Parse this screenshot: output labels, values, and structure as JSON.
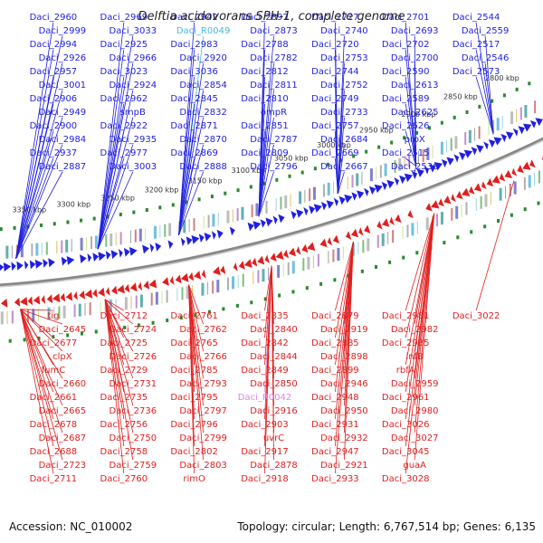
{
  "title": "Delftia acidovorans SPH-1, complete genome",
  "accession": "Accession: NC_010002",
  "summary": "Topology: circular; Length: 6,767,514 bp; Genes: 6,135",
  "colors": {
    "forward_strand": "#1f1fe0",
    "reverse_strand": "#e01f1f",
    "rna_gene": "#44bbdd",
    "pseudogene": "#dd88dd",
    "backbone": "#888888",
    "tick": "#2a8a2a"
  },
  "kbp_ticks": [
    "2800 kbp",
    "2850 kbp",
    "2900 kbp",
    "2950 kbp",
    "3000 kbp",
    "3050 kbp",
    "3100 kbp",
    "3150 kbp",
    "3200 kbp",
    "3250 kbp",
    "3300 kbp",
    "3350 kbp"
  ],
  "upper_labels": [
    {
      "text": "Daci_2960",
      "c": "b"
    },
    {
      "text": "Daci_2999",
      "c": "b"
    },
    {
      "text": "Daci_2994",
      "c": "b"
    },
    {
      "text": "Daci_2926",
      "c": "b"
    },
    {
      "text": "Daci_2957",
      "c": "b"
    },
    {
      "text": "Daci_3001",
      "c": "b"
    },
    {
      "text": "Daci_2906",
      "c": "b"
    },
    {
      "text": "Daci_2949",
      "c": "b"
    },
    {
      "text": "Daci_2900",
      "c": "b"
    },
    {
      "text": "Daci_2984",
      "c": "b"
    },
    {
      "text": "Daci_2937",
      "c": "b"
    },
    {
      "text": "Daci_2887",
      "c": "b"
    },
    {
      "text": "Daci_2969",
      "c": "b"
    },
    {
      "text": "Daci_3033",
      "c": "b"
    },
    {
      "text": "Daci_2925",
      "c": "b"
    },
    {
      "text": "Daci_2966",
      "c": "b"
    },
    {
      "text": "Daci_3023",
      "c": "b"
    },
    {
      "text": "Daci_2924",
      "c": "b"
    },
    {
      "text": "Daci_2962",
      "c": "b"
    },
    {
      "text": "smpB",
      "c": "b"
    },
    {
      "text": "Daci_2922",
      "c": "b"
    },
    {
      "text": "Daci_2935",
      "c": "b"
    },
    {
      "text": "Daci_2977",
      "c": "b"
    },
    {
      "text": "Daci_3003",
      "c": "b"
    },
    {
      "text": "Daci_2942",
      "c": "b"
    },
    {
      "text": "Daci_R0049",
      "c": "c"
    },
    {
      "text": "Daci_2983",
      "c": "b"
    },
    {
      "text": "Daci_2920",
      "c": "b"
    },
    {
      "text": "Daci_3036",
      "c": "b"
    },
    {
      "text": "Daci_2854",
      "c": "b"
    },
    {
      "text": "Daci_2845",
      "c": "b"
    },
    {
      "text": "Daci_2832",
      "c": "b"
    },
    {
      "text": "Daci_2871",
      "c": "b"
    },
    {
      "text": "Daci_2870",
      "c": "b"
    },
    {
      "text": "Daci_2869",
      "c": "b"
    },
    {
      "text": "Daci_2888",
      "c": "b"
    },
    {
      "text": "Daci_2897",
      "c": "b"
    },
    {
      "text": "Daci_2873",
      "c": "b"
    },
    {
      "text": "Daci_2788",
      "c": "b"
    },
    {
      "text": "Daci_2782",
      "c": "b"
    },
    {
      "text": "Daci_2812",
      "c": "b"
    },
    {
      "text": "Daci_2811",
      "c": "b"
    },
    {
      "text": "Daci_2810",
      "c": "b"
    },
    {
      "text": "ompR",
      "c": "b"
    },
    {
      "text": "Daci_2851",
      "c": "b"
    },
    {
      "text": "Daci_2787",
      "c": "b"
    },
    {
      "text": "Daci_2809",
      "c": "b"
    },
    {
      "text": "Daci_2796",
      "c": "b"
    },
    {
      "text": "Daci_2727",
      "c": "b"
    },
    {
      "text": "Daci_2740",
      "c": "b"
    },
    {
      "text": "Daci_2720",
      "c": "b"
    },
    {
      "text": "Daci_2753",
      "c": "b"
    },
    {
      "text": "Daci_2744",
      "c": "b"
    },
    {
      "text": "Daci_2752",
      "c": "b"
    },
    {
      "text": "Daci_2749",
      "c": "b"
    },
    {
      "text": "Daci_2733",
      "c": "b"
    },
    {
      "text": "Daci_2757",
      "c": "b"
    },
    {
      "text": "Daci_2684",
      "c": "b"
    },
    {
      "text": "Daci_2669",
      "c": "b"
    },
    {
      "text": "Daci_2667",
      "c": "b"
    },
    {
      "text": "Daci_2701",
      "c": "b"
    },
    {
      "text": "Daci_2693",
      "c": "b"
    },
    {
      "text": "Daci_2702",
      "c": "b"
    },
    {
      "text": "Daci_2700",
      "c": "b"
    },
    {
      "text": "Daci_2590",
      "c": "b"
    },
    {
      "text": "Daci_2613",
      "c": "b"
    },
    {
      "text": "Daci_2589",
      "c": "b"
    },
    {
      "text": "Daci_2625",
      "c": "b"
    },
    {
      "text": "Daci_2626",
      "c": "b"
    },
    {
      "text": "proX",
      "c": "b"
    },
    {
      "text": "Daci_2515",
      "c": "b"
    },
    {
      "text": "Daci_2536",
      "c": "b"
    },
    {
      "text": "Daci_2544",
      "c": "b"
    },
    {
      "text": "Daci_2559",
      "c": "b"
    },
    {
      "text": "Daci_2517",
      "c": "b"
    },
    {
      "text": "Daci_2546",
      "c": "b"
    },
    {
      "text": "Daci_2573",
      "c": "b"
    }
  ],
  "lower_labels": [
    {
      "text": "tig",
      "c": "r"
    },
    {
      "text": "Daci_2645",
      "c": "r"
    },
    {
      "text": "Daci_2677",
      "c": "r"
    },
    {
      "text": "clpX",
      "c": "r"
    },
    {
      "text": "fumC",
      "c": "r"
    },
    {
      "text": "Daci_2660",
      "c": "r"
    },
    {
      "text": "Daci_2661",
      "c": "r"
    },
    {
      "text": "Daci_2665",
      "c": "r"
    },
    {
      "text": "Daci_2678",
      "c": "r"
    },
    {
      "text": "Daci_2687",
      "c": "r"
    },
    {
      "text": "Daci_2688",
      "c": "r"
    },
    {
      "text": "Daci_2723",
      "c": "r"
    },
    {
      "text": "Daci_2711",
      "c": "r"
    },
    {
      "text": "Daci_2712",
      "c": "r"
    },
    {
      "text": "Daci_2724",
      "c": "r"
    },
    {
      "text": "Daci_2725",
      "c": "r"
    },
    {
      "text": "Daci_2726",
      "c": "r"
    },
    {
      "text": "Daci_2729",
      "c": "r"
    },
    {
      "text": "Daci_2731",
      "c": "r"
    },
    {
      "text": "Daci_2735",
      "c": "r"
    },
    {
      "text": "Daci_2736",
      "c": "r"
    },
    {
      "text": "Daci_2756",
      "c": "r"
    },
    {
      "text": "Daci_2750",
      "c": "r"
    },
    {
      "text": "Daci_2758",
      "c": "r"
    },
    {
      "text": "Daci_2759",
      "c": "r"
    },
    {
      "text": "Daci_2760",
      "c": "r"
    },
    {
      "text": "Daci_2761",
      "c": "r"
    },
    {
      "text": "Daci_2762",
      "c": "r"
    },
    {
      "text": "Daci_2765",
      "c": "r"
    },
    {
      "text": "Daci_2766",
      "c": "r"
    },
    {
      "text": "Daci_2785",
      "c": "r"
    },
    {
      "text": "Daci_2793",
      "c": "r"
    },
    {
      "text": "Daci_2795",
      "c": "r"
    },
    {
      "text": "Daci_2797",
      "c": "r"
    },
    {
      "text": "Daci_2796",
      "c": "r"
    },
    {
      "text": "Daci_2799",
      "c": "r"
    },
    {
      "text": "Daci_2802",
      "c": "r"
    },
    {
      "text": "Daci_2803",
      "c": "r"
    },
    {
      "text": "rimO",
      "c": "r"
    },
    {
      "text": "Daci_2835",
      "c": "r"
    },
    {
      "text": "Daci_2840",
      "c": "r"
    },
    {
      "text": "Daci_2842",
      "c": "r"
    },
    {
      "text": "Daci_2844",
      "c": "r"
    },
    {
      "text": "Daci_2849",
      "c": "r"
    },
    {
      "text": "Daci_2850",
      "c": "r"
    },
    {
      "text": "Daci_R0042",
      "c": "p"
    },
    {
      "text": "Daci_2916",
      "c": "r"
    },
    {
      "text": "Daci_2903",
      "c": "r"
    },
    {
      "text": "uvrC",
      "c": "r"
    },
    {
      "text": "Daci_2917",
      "c": "r"
    },
    {
      "text": "Daci_2878",
      "c": "r"
    },
    {
      "text": "Daci_2918",
      "c": "r"
    },
    {
      "text": "Daci_2879",
      "c": "r"
    },
    {
      "text": "Daci_2919",
      "c": "r"
    },
    {
      "text": "Daci_2885",
      "c": "r"
    },
    {
      "text": "Daci_2898",
      "c": "r"
    },
    {
      "text": "Daci_2899",
      "c": "r"
    },
    {
      "text": "Daci_2946",
      "c": "r"
    },
    {
      "text": "Daci_2948",
      "c": "r"
    },
    {
      "text": "Daci_2950",
      "c": "r"
    },
    {
      "text": "Daci_2931",
      "c": "r"
    },
    {
      "text": "Daci_2932",
      "c": "r"
    },
    {
      "text": "Daci_2947",
      "c": "r"
    },
    {
      "text": "Daci_2921",
      "c": "r"
    },
    {
      "text": "Daci_2933",
      "c": "r"
    },
    {
      "text": "Daci_2981",
      "c": "r"
    },
    {
      "text": "Daci_2982",
      "c": "r"
    },
    {
      "text": "Daci_2985",
      "c": "r"
    },
    {
      "text": "infB",
      "c": "r"
    },
    {
      "text": "rbfA",
      "c": "r"
    },
    {
      "text": "Daci_2959",
      "c": "r"
    },
    {
      "text": "Daci_2961",
      "c": "r"
    },
    {
      "text": "Daci_2980",
      "c": "r"
    },
    {
      "text": "Daci_3026",
      "c": "r"
    },
    {
      "text": "Daci_3027",
      "c": "r"
    },
    {
      "text": "Daci_3045",
      "c": "r"
    },
    {
      "text": "guaA",
      "c": "r"
    },
    {
      "text": "Daci_3028",
      "c": "r"
    },
    {
      "text": "Daci_3022",
      "c": "r"
    }
  ]
}
